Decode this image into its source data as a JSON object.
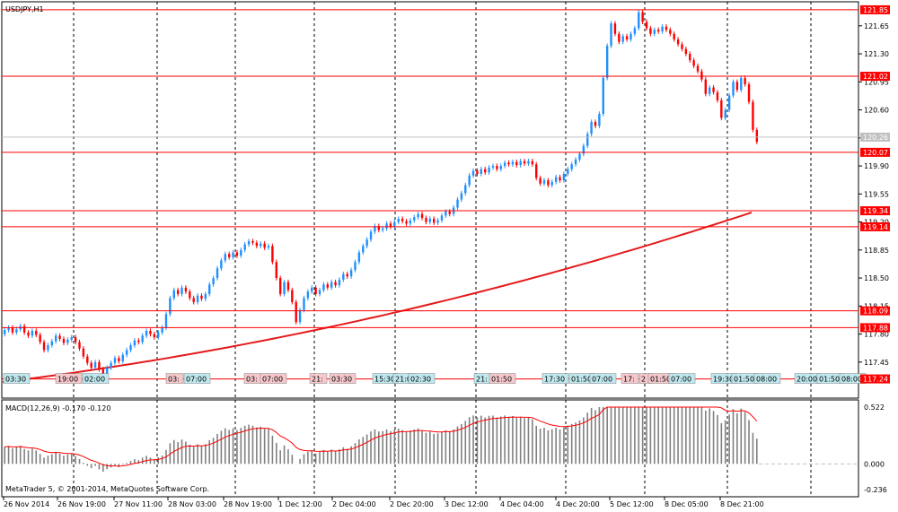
{
  "window": {
    "title": "USDJPY,H1"
  },
  "colors": {
    "bull": "#1e90ff",
    "bear": "#ff0000",
    "hline": "#ff0000",
    "ma": "#e41a1c",
    "grid": "#000000",
    "current": "#c0c0c0",
    "macd_hist": "#808080",
    "macd_signal": "#ff0000",
    "tag_cyan": "#bfe9ef",
    "tag_pink": "#f6c8cc"
  },
  "chart_data": [
    {
      "type": "candlestick",
      "title": "USDJPY,H1",
      "ylim": [
        117.0,
        121.95
      ],
      "y_ticks": [
        121.65,
        121.3,
        120.95,
        120.6,
        120.25,
        119.9,
        119.55,
        119.2,
        118.85,
        118.5,
        118.15,
        117.8,
        117.45
      ],
      "x_ticks": [
        "26 Nov 2014",
        "26 Nov 19:00",
        "27 Nov 11:00",
        "28 Nov 03:00",
        "28 Nov 19:00",
        "1 Dec 12:00",
        "2 Dec 04:00",
        "2 Dec 20:00",
        "3 Dec 12:00",
        "4 Dec 04:00",
        "4 Dec 20:00",
        "5 Dec 12:00",
        "8 Dec 05:00",
        "8 Dec 21:00"
      ],
      "current_price": "120.26",
      "horizontal_levels": [
        "121.85",
        "121.02",
        "120.07",
        "119.34",
        "119.14",
        "118.09",
        "117.88",
        "117.24"
      ],
      "grid": true,
      "series": [
        {
          "type": "candlestick",
          "points": [
            [
              117.8,
              117.85
            ],
            [
              117.85,
              117.88
            ],
            [
              117.88,
              117.82
            ],
            [
              117.82,
              117.86
            ],
            [
              117.86,
              117.9
            ],
            [
              117.9,
              117.82
            ],
            [
              117.82,
              117.78
            ],
            [
              117.78,
              117.84
            ],
            [
              117.84,
              117.79
            ],
            [
              117.79,
              117.7
            ],
            [
              117.7,
              117.6
            ],
            [
              117.6,
              117.66
            ],
            [
              117.66,
              117.71
            ],
            [
              117.71,
              117.78
            ],
            [
              117.78,
              117.74
            ],
            [
              117.74,
              117.69
            ],
            [
              117.69,
              117.73
            ],
            [
              117.73,
              117.76
            ],
            [
              117.76,
              117.7
            ],
            [
              117.7,
              117.62
            ],
            [
              117.62,
              117.52
            ],
            [
              117.52,
              117.44
            ],
            [
              117.44,
              117.38
            ],
            [
              117.38,
              117.45
            ],
            [
              117.45,
              117.36
            ],
            [
              117.36,
              117.3
            ],
            [
              117.3,
              117.38
            ],
            [
              117.38,
              117.44
            ],
            [
              117.44,
              117.5
            ],
            [
              117.5,
              117.46
            ],
            [
              117.46,
              117.54
            ],
            [
              117.54,
              117.6
            ],
            [
              117.6,
              117.66
            ],
            [
              117.66,
              117.72
            ],
            [
              117.72,
              117.7
            ],
            [
              117.7,
              117.78
            ],
            [
              117.78,
              117.84
            ],
            [
              117.84,
              117.8
            ],
            [
              117.8,
              117.76
            ],
            [
              117.76,
              117.82
            ],
            [
              117.82,
              117.88
            ],
            [
              117.88,
              118.05
            ],
            [
              118.05,
              118.25
            ],
            [
              118.25,
              118.35
            ],
            [
              118.35,
              118.3
            ],
            [
              118.3,
              118.38
            ],
            [
              118.38,
              118.33
            ],
            [
              118.33,
              118.25
            ],
            [
              118.25,
              118.2
            ],
            [
              118.2,
              118.28
            ],
            [
              118.28,
              118.24
            ],
            [
              118.24,
              118.3
            ],
            [
              118.3,
              118.42
            ],
            [
              118.42,
              118.5
            ],
            [
              118.5,
              118.62
            ],
            [
              118.62,
              118.72
            ],
            [
              118.72,
              118.8
            ],
            [
              118.8,
              118.76
            ],
            [
              118.76,
              118.82
            ],
            [
              118.82,
              118.78
            ],
            [
              118.78,
              118.85
            ],
            [
              118.85,
              118.92
            ],
            [
              118.92,
              118.96
            ],
            [
              118.96,
              118.94
            ],
            [
              118.94,
              118.9
            ],
            [
              118.9,
              118.93
            ],
            [
              118.93,
              118.88
            ],
            [
              118.88,
              118.9
            ],
            [
              118.9,
              118.7
            ],
            [
              118.7,
              118.5
            ],
            [
              118.5,
              118.3
            ],
            [
              118.3,
              118.45
            ],
            [
              118.45,
              118.35
            ],
            [
              118.35,
              118.2
            ],
            [
              118.2,
              117.95
            ],
            [
              117.95,
              118.1
            ],
            [
              118.1,
              118.25
            ],
            [
              118.25,
              118.33
            ],
            [
              118.33,
              118.38
            ],
            [
              118.38,
              118.3
            ],
            [
              118.3,
              118.35
            ],
            [
              118.35,
              118.42
            ],
            [
              118.42,
              118.38
            ],
            [
              118.38,
              118.45
            ],
            [
              118.45,
              118.41
            ],
            [
              118.41,
              118.48
            ],
            [
              118.48,
              118.55
            ],
            [
              118.55,
              118.52
            ],
            [
              118.52,
              118.6
            ],
            [
              118.6,
              118.7
            ],
            [
              118.7,
              118.82
            ],
            [
              118.82,
              118.9
            ],
            [
              118.9,
              118.98
            ],
            [
              118.98,
              119.08
            ],
            [
              119.08,
              119.15
            ],
            [
              119.15,
              119.1
            ],
            [
              119.1,
              119.12
            ],
            [
              119.12,
              119.18
            ],
            [
              119.18,
              119.14
            ],
            [
              119.14,
              119.2
            ],
            [
              119.2,
              119.24
            ],
            [
              119.24,
              119.21
            ],
            [
              119.21,
              119.18
            ],
            [
              119.18,
              119.22
            ],
            [
              119.22,
              119.26
            ],
            [
              119.26,
              119.3
            ],
            [
              119.3,
              119.25
            ],
            [
              119.25,
              119.2
            ],
            [
              119.2,
              119.24
            ],
            [
              119.24,
              119.19
            ],
            [
              119.19,
              119.22
            ],
            [
              119.22,
              119.28
            ],
            [
              119.28,
              119.33
            ],
            [
              119.33,
              119.3
            ],
            [
              119.3,
              119.38
            ],
            [
              119.38,
              119.48
            ],
            [
              119.48,
              119.56
            ],
            [
              119.56,
              119.66
            ],
            [
              119.66,
              119.78
            ],
            [
              119.78,
              119.84
            ],
            [
              119.84,
              119.8
            ],
            [
              119.8,
              119.86
            ],
            [
              119.86,
              119.82
            ],
            [
              119.82,
              119.88
            ],
            [
              119.88,
              119.9
            ],
            [
              119.9,
              119.86
            ],
            [
              119.86,
              119.9
            ],
            [
              119.9,
              119.94
            ],
            [
              119.94,
              119.92
            ],
            [
              119.92,
              119.95
            ],
            [
              119.95,
              119.91
            ],
            [
              119.91,
              119.96
            ],
            [
              119.96,
              119.93
            ],
            [
              119.93,
              119.96
            ],
            [
              119.96,
              119.92
            ],
            [
              119.92,
              119.75
            ],
            [
              119.75,
              119.68
            ],
            [
              119.68,
              119.72
            ],
            [
              119.72,
              119.66
            ],
            [
              119.66,
              119.7
            ],
            [
              119.7,
              119.76
            ],
            [
              119.76,
              119.72
            ],
            [
              119.72,
              119.8
            ],
            [
              119.8,
              119.86
            ],
            [
              119.86,
              119.92
            ],
            [
              119.92,
              119.98
            ],
            [
              119.98,
              120.05
            ],
            [
              120.05,
              120.15
            ],
            [
              120.15,
              120.3
            ],
            [
              120.3,
              120.45
            ],
            [
              120.45,
              120.4
            ],
            [
              120.4,
              120.55
            ],
            [
              120.55,
              121.0
            ],
            [
              121.0,
              121.4
            ],
            [
              121.4,
              121.68
            ],
            [
              121.68,
              121.55
            ],
            [
              121.55,
              121.45
            ],
            [
              121.45,
              121.52
            ],
            [
              121.52,
              121.48
            ],
            [
              121.48,
              121.55
            ],
            [
              121.55,
              121.62
            ],
            [
              121.62,
              121.82
            ],
            [
              121.82,
              121.7
            ],
            [
              121.7,
              121.62
            ],
            [
              121.62,
              121.55
            ],
            [
              121.55,
              121.6
            ],
            [
              121.6,
              121.58
            ],
            [
              121.58,
              121.64
            ],
            [
              121.64,
              121.6
            ],
            [
              121.6,
              121.55
            ],
            [
              121.55,
              121.48
            ],
            [
              121.48,
              121.42
            ],
            [
              121.42,
              121.36
            ],
            [
              121.36,
              121.3
            ],
            [
              121.3,
              121.22
            ],
            [
              121.22,
              121.15
            ],
            [
              121.15,
              121.08
            ],
            [
              121.08,
              120.98
            ],
            [
              120.98,
              120.8
            ],
            [
              120.8,
              120.88
            ],
            [
              120.88,
              120.82
            ],
            [
              120.82,
              120.72
            ],
            [
              120.72,
              120.5
            ],
            [
              120.5,
              120.6
            ],
            [
              120.6,
              120.78
            ],
            [
              120.78,
              120.95
            ],
            [
              120.95,
              120.85
            ],
            [
              120.85,
              121.0
            ],
            [
              121.0,
              120.92
            ],
            [
              120.92,
              120.7
            ],
            [
              120.7,
              120.35
            ],
            [
              120.35,
              120.2
            ]
          ]
        },
        {
          "name": "",
          "type": "line",
          "values_start_end": [
            117.2,
            119.3
          ]
        }
      ]
    },
    {
      "type": "bar",
      "title": "MACD(12,26,9) -0.170 -0.120",
      "y_ticks": [
        "0.522",
        "0.000",
        "-0.236"
      ],
      "ylim": [
        -0.236,
        0.522
      ],
      "series": [
        {
          "name": "MACD",
          "type": "bar"
        },
        {
          "name": "Signal",
          "type": "line"
        }
      ]
    }
  ],
  "tags": [
    {
      "text": "03:30",
      "kind": "cyan"
    },
    {
      "text": "19:00",
      "kind": "pink"
    },
    {
      "text": "02:00",
      "kind": "cyan"
    },
    {
      "text": "03:",
      "kind": "pink"
    },
    {
      "text": "07:00",
      "kind": "cyan"
    },
    {
      "text": "03:",
      "kind": "pink"
    },
    {
      "text": "07:00",
      "kind": "pink"
    },
    {
      "text": "21:",
      "kind": "pink"
    },
    {
      "text": "03:30",
      "kind": "pink"
    },
    {
      "text": "15:30",
      "kind": "cyan"
    },
    {
      "text": "21:0",
      "kind": "cyan"
    },
    {
      "text": "02:30",
      "kind": "cyan"
    },
    {
      "text": "21:",
      "kind": "cyan"
    },
    {
      "text": "01:50",
      "kind": "pink"
    },
    {
      "text": "17:30",
      "kind": "cyan"
    },
    {
      "text": "01:50",
      "kind": "cyan"
    },
    {
      "text": "07:00",
      "kind": "cyan"
    },
    {
      "text": "17:",
      "kind": "pink"
    },
    {
      "text": "2",
      "kind": "pink"
    },
    {
      "text": "01:50",
      "kind": "pink"
    },
    {
      "text": "07:00",
      "kind": "cyan"
    },
    {
      "text": "19:30",
      "kind": "cyan"
    },
    {
      "text": "01:50",
      "kind": "cyan"
    },
    {
      "text": "08:00",
      "kind": "cyan"
    },
    {
      "text": "20:00",
      "kind": "cyan"
    },
    {
      "text": "01:50",
      "kind": "cyan"
    },
    {
      "text": "08:00",
      "kind": "cyan"
    }
  ],
  "footer": {
    "copyright": "MetaTrader 5, © 2001-2014, MetaQuotes Software Corp."
  }
}
